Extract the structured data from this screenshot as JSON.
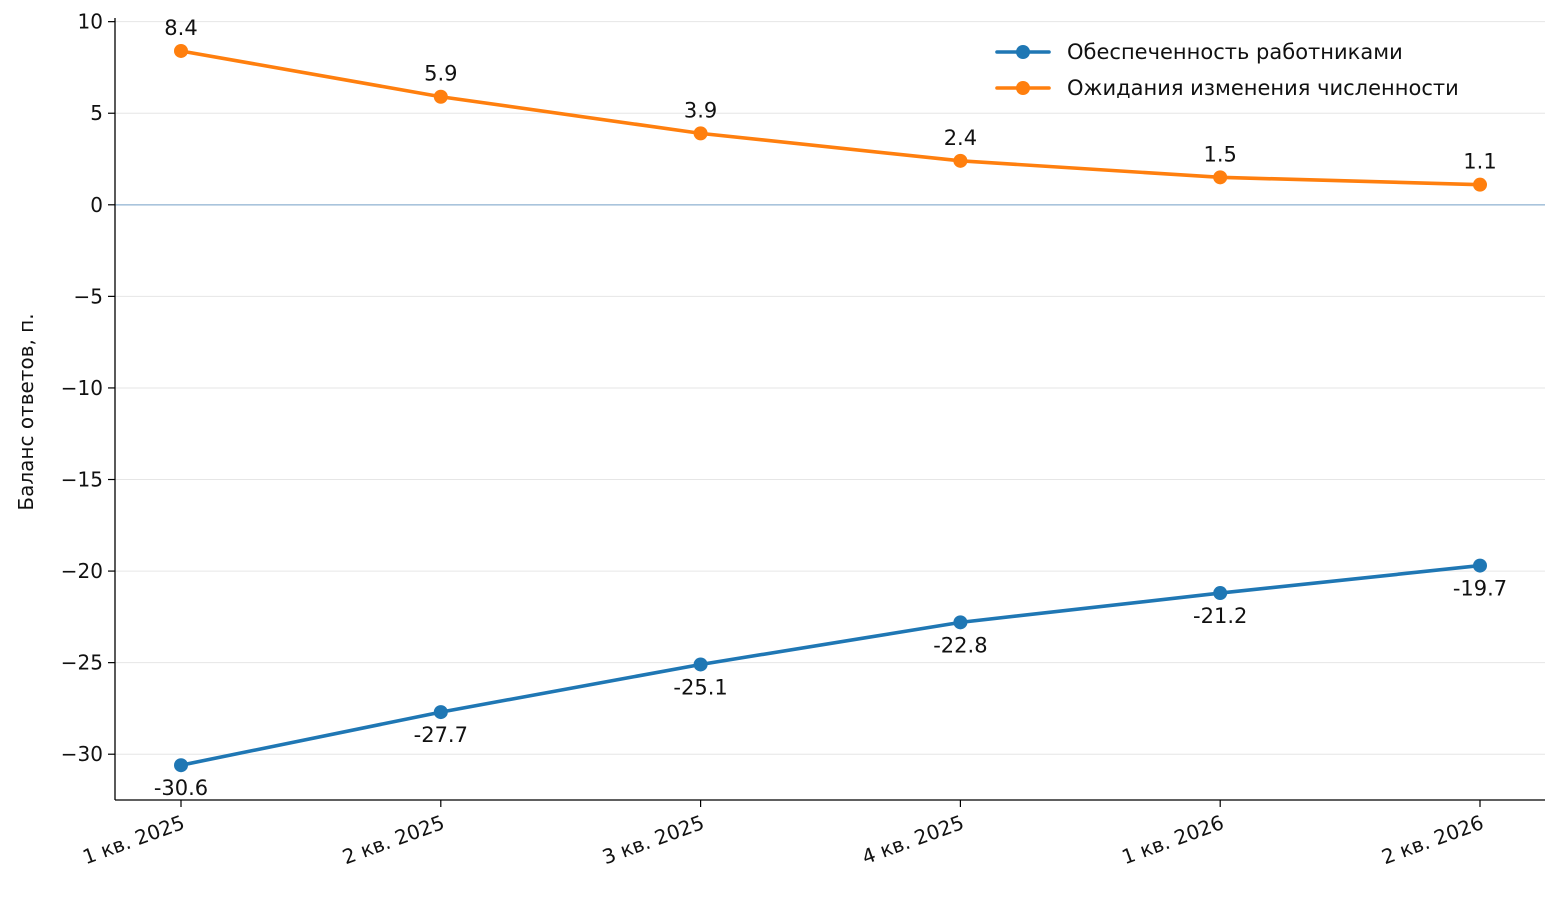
{
  "chart_data": {
    "type": "line",
    "categories": [
      "1 кв. 2025",
      "2 кв. 2025",
      "3 кв. 2025",
      "4 кв. 2025",
      "1 кв. 2026",
      "2 кв. 2026"
    ],
    "series": [
      {
        "name": "Обеспеченность работниками",
        "values": [
          -30.6,
          -27.7,
          -25.1,
          -22.8,
          -21.2,
          -19.7
        ],
        "labels": [
          "-30.6",
          "-27.7",
          "-25.1",
          "-22.8",
          "-21.2",
          "-19.7"
        ],
        "color": "#1f77b4",
        "label_position": "below"
      },
      {
        "name": "Ожидания изменения численности",
        "values": [
          8.4,
          5.9,
          3.9,
          2.4,
          1.5,
          1.1
        ],
        "labels": [
          "8.4",
          "5.9",
          "3.9",
          "2.4",
          "1.5",
          "1.1"
        ],
        "color": "#ff7f0e",
        "label_position": "above"
      }
    ],
    "xlabel": "",
    "ylabel": "Баланс ответов, п.",
    "ylim": [
      -32.5,
      10.2
    ],
    "yticks": [
      10,
      5,
      0,
      -5,
      -10,
      -15,
      -20,
      -25,
      -30
    ],
    "ytick_labels": [
      "10",
      "5",
      "0",
      "−5",
      "−10",
      "−15",
      "−20",
      "−25",
      "−30"
    ],
    "zero_line": true,
    "zero_line_color": "#a9c4dc",
    "grid": "horizontal",
    "legend_position": "top-right"
  }
}
